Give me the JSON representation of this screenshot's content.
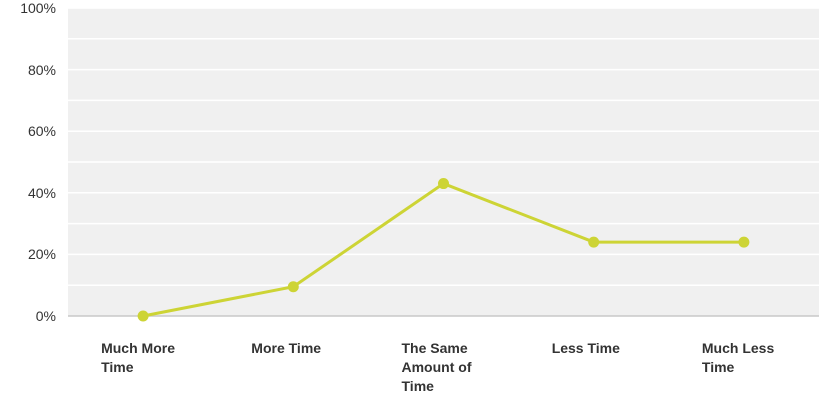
{
  "chart_data": {
    "type": "line",
    "categories": [
      "Much More Time",
      "More Time",
      "The Same Amount of Time",
      "Less Time",
      "Much Less Time"
    ],
    "series": [
      {
        "color": "#cdd435",
        "values": [
          0,
          9.5,
          43,
          24,
          24
        ]
      }
    ],
    "ylim": [
      0,
      100
    ],
    "yticks": [
      {
        "value": 0,
        "label": "0%"
      },
      {
        "value": 20,
        "label": "20%"
      },
      {
        "value": 40,
        "label": "40%"
      },
      {
        "value": 60,
        "label": "60%"
      },
      {
        "value": 80,
        "label": "80%"
      },
      {
        "value": 100,
        "label": "100%"
      }
    ],
    "grid": true
  }
}
